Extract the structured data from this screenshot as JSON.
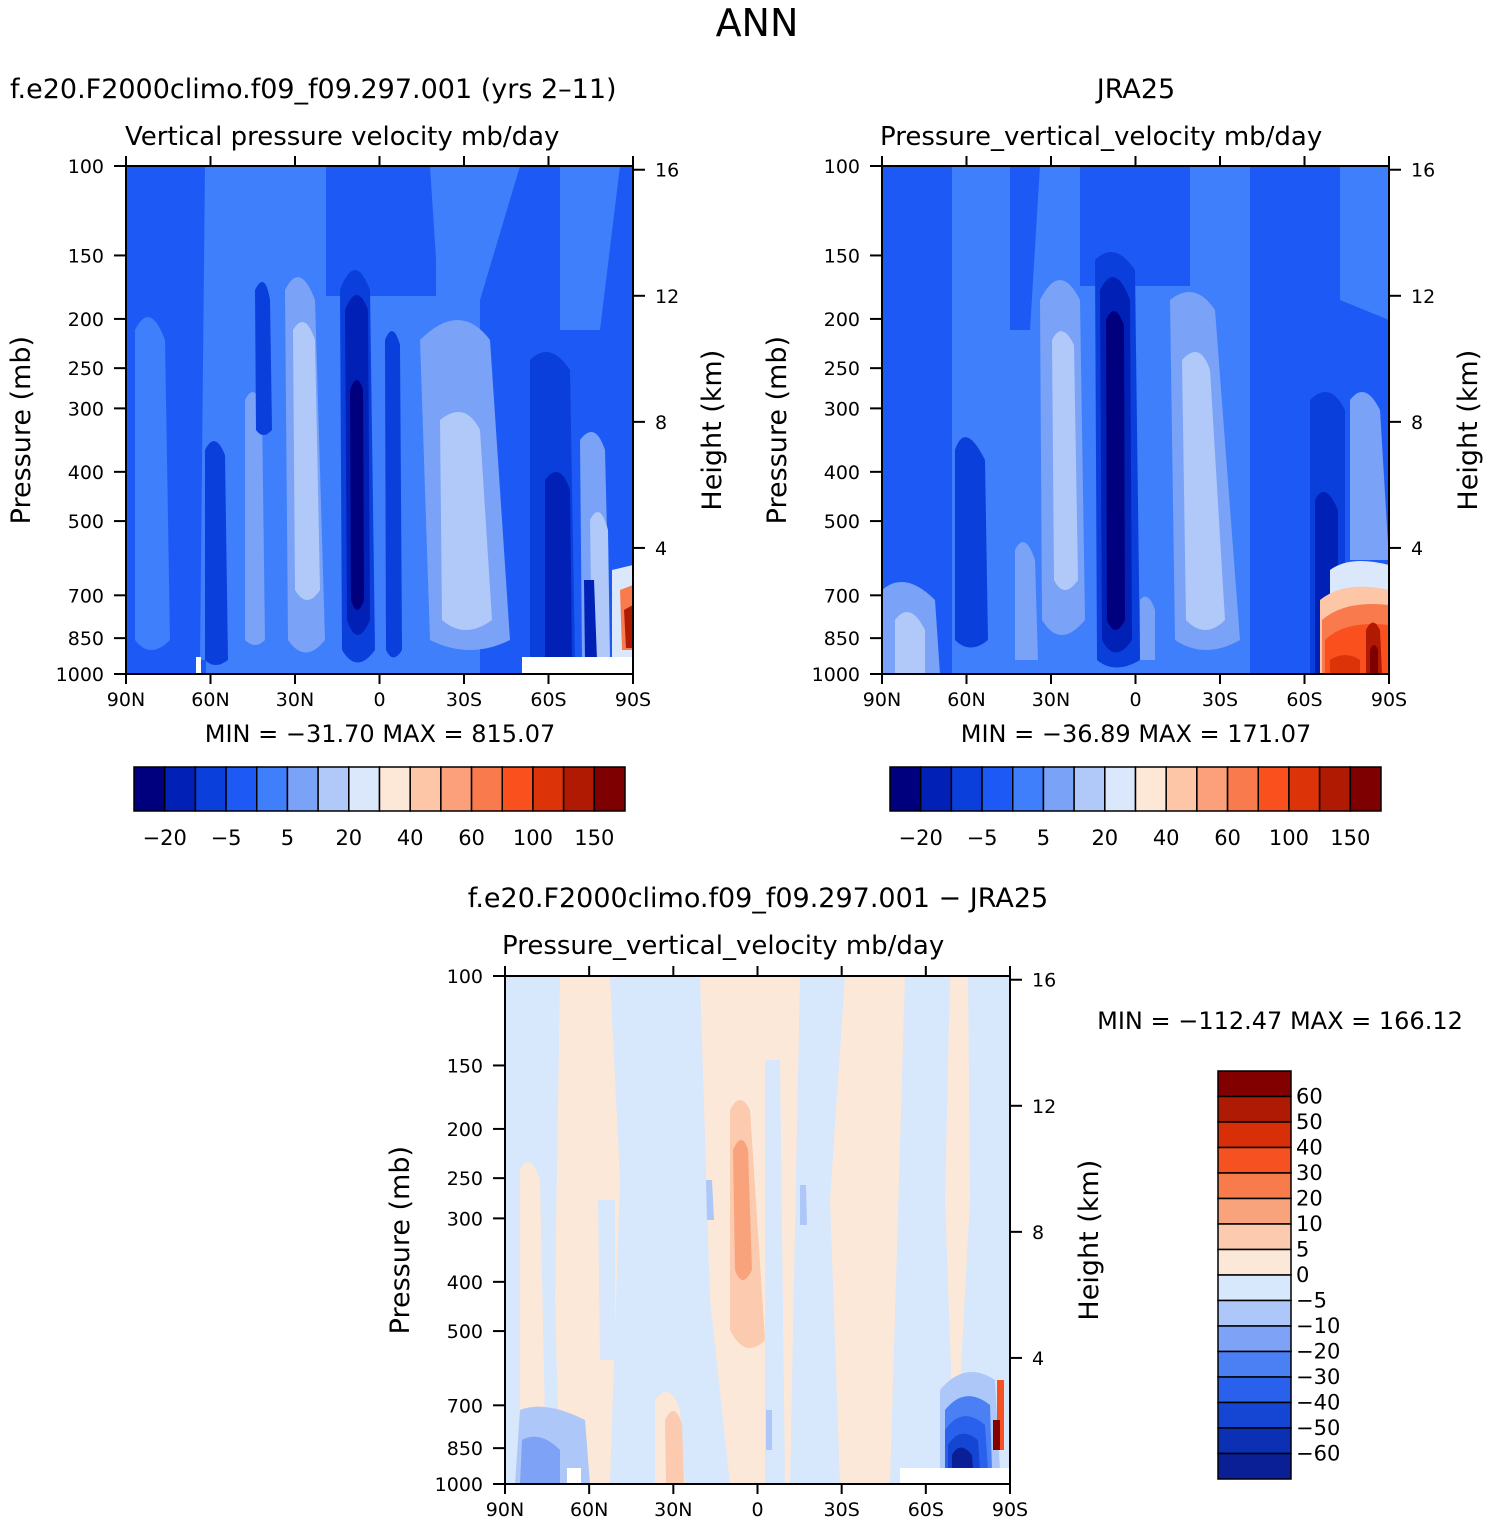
{
  "title": "ANN",
  "colors": {
    "top_scale": [
      "#00007f",
      "#0020b6",
      "#0a3fdc",
      "#1d5af5",
      "#3f7ffb",
      "#7aa2f6",
      "#b0c9f8",
      "#dbe8fc",
      "#fde8d8",
      "#fcc6a7",
      "#fba07b",
      "#f97a4c",
      "#f9501e",
      "#dd3308",
      "#b01a03",
      "#7e0000"
    ],
    "diff_scale": [
      "#0a1f96",
      "#0b30b3",
      "#1446d3",
      "#2a61ec",
      "#4b80f5",
      "#7ea2f6",
      "#adc7f8",
      "#d7e7fc",
      "#fce8d8",
      "#fbcaaf",
      "#f9a37d",
      "#f87b4b",
      "#f65221",
      "#d82f08",
      "#ae1a03",
      "#830000"
    ]
  },
  "panels": {
    "model": {
      "case_title": "f.e20.F2000climo.f09_f09.297.001 (yrs 2–11)",
      "var_title": "Vertical pressure velocity   mb/day",
      "min_max": "MIN = −31.70  MAX = 815.07"
    },
    "obs": {
      "case_title": "JRA25",
      "var_title": "Pressure_vertical_velocity   mb/day",
      "min_max": "MIN = −36.89  MAX = 171.07"
    },
    "diff": {
      "case_title": "f.e20.F2000climo.f09_f09.297.001 − JRA25",
      "var_title": "Pressure_vertical_velocity   mb/day",
      "min_max": "MIN = −112.47   MAX = 166.12"
    }
  },
  "axes": {
    "ylabel": "Pressure  (mb)",
    "y2label": "Height  (km)",
    "xticks": [
      "90N",
      "60N",
      "30N",
      "0",
      "30S",
      "60S",
      "90S"
    ],
    "yticks": [
      "100",
      "150",
      "200",
      "250",
      "300",
      "400",
      "500",
      "700",
      "850",
      "1000"
    ],
    "y2ticks": [
      "16",
      "12",
      "8",
      "4"
    ]
  },
  "colorbar_top": {
    "labels": [
      "−20",
      "−5",
      "5",
      "20",
      "40",
      "60",
      "100",
      "150"
    ]
  },
  "colorbar_diff": {
    "labels": [
      "60",
      "50",
      "40",
      "30",
      "20",
      "10",
      "5",
      "0",
      "−5",
      "−10",
      "−20",
      "−30",
      "−40",
      "−50",
      "−60"
    ]
  },
  "chart_data": [
    {
      "type": "heatmap",
      "title": "Vertical pressure velocity  mb/day",
      "xlabel": "",
      "ylabel": "Pressure (mb)",
      "x_categories": [
        "90N",
        "60N",
        "30N",
        "0",
        "30S",
        "60S",
        "90S"
      ],
      "x_values": [
        -90,
        -60,
        -30,
        0,
        30,
        60,
        90
      ],
      "y_values": [
        100,
        150,
        200,
        250,
        300,
        400,
        500,
        700,
        850,
        1000
      ],
      "ylim": [
        1000,
        100
      ],
      "contour_levels": [
        -20,
        -5,
        5,
        20,
        40,
        60,
        100,
        150
      ],
      "min": -31.7,
      "max": 815.07
    },
    {
      "type": "heatmap",
      "title": "Pressure_vertical_velocity  mb/day (JRA25)",
      "x_categories": [
        "90N",
        "60N",
        "30N",
        "0",
        "30S",
        "60S",
        "90S"
      ],
      "y_values": [
        100,
        150,
        200,
        250,
        300,
        400,
        500,
        700,
        850,
        1000
      ],
      "ylim": [
        1000,
        100
      ],
      "contour_levels": [
        -20,
        -5,
        5,
        20,
        40,
        60,
        100,
        150
      ],
      "min": -36.89,
      "max": 171.07
    },
    {
      "type": "heatmap",
      "title": "Pressure_vertical_velocity  mb/day (difference)",
      "x_categories": [
        "90N",
        "60N",
        "30N",
        "0",
        "30S",
        "60S",
        "90S"
      ],
      "y_values": [
        100,
        150,
        200,
        250,
        300,
        400,
        500,
        700,
        850,
        1000
      ],
      "ylim": [
        1000,
        100
      ],
      "contour_levels": [
        -60,
        -50,
        -40,
        -30,
        -20,
        -10,
        -5,
        0,
        5,
        10,
        20,
        30,
        40,
        50,
        60
      ],
      "min": -112.47,
      "max": 166.12
    }
  ]
}
